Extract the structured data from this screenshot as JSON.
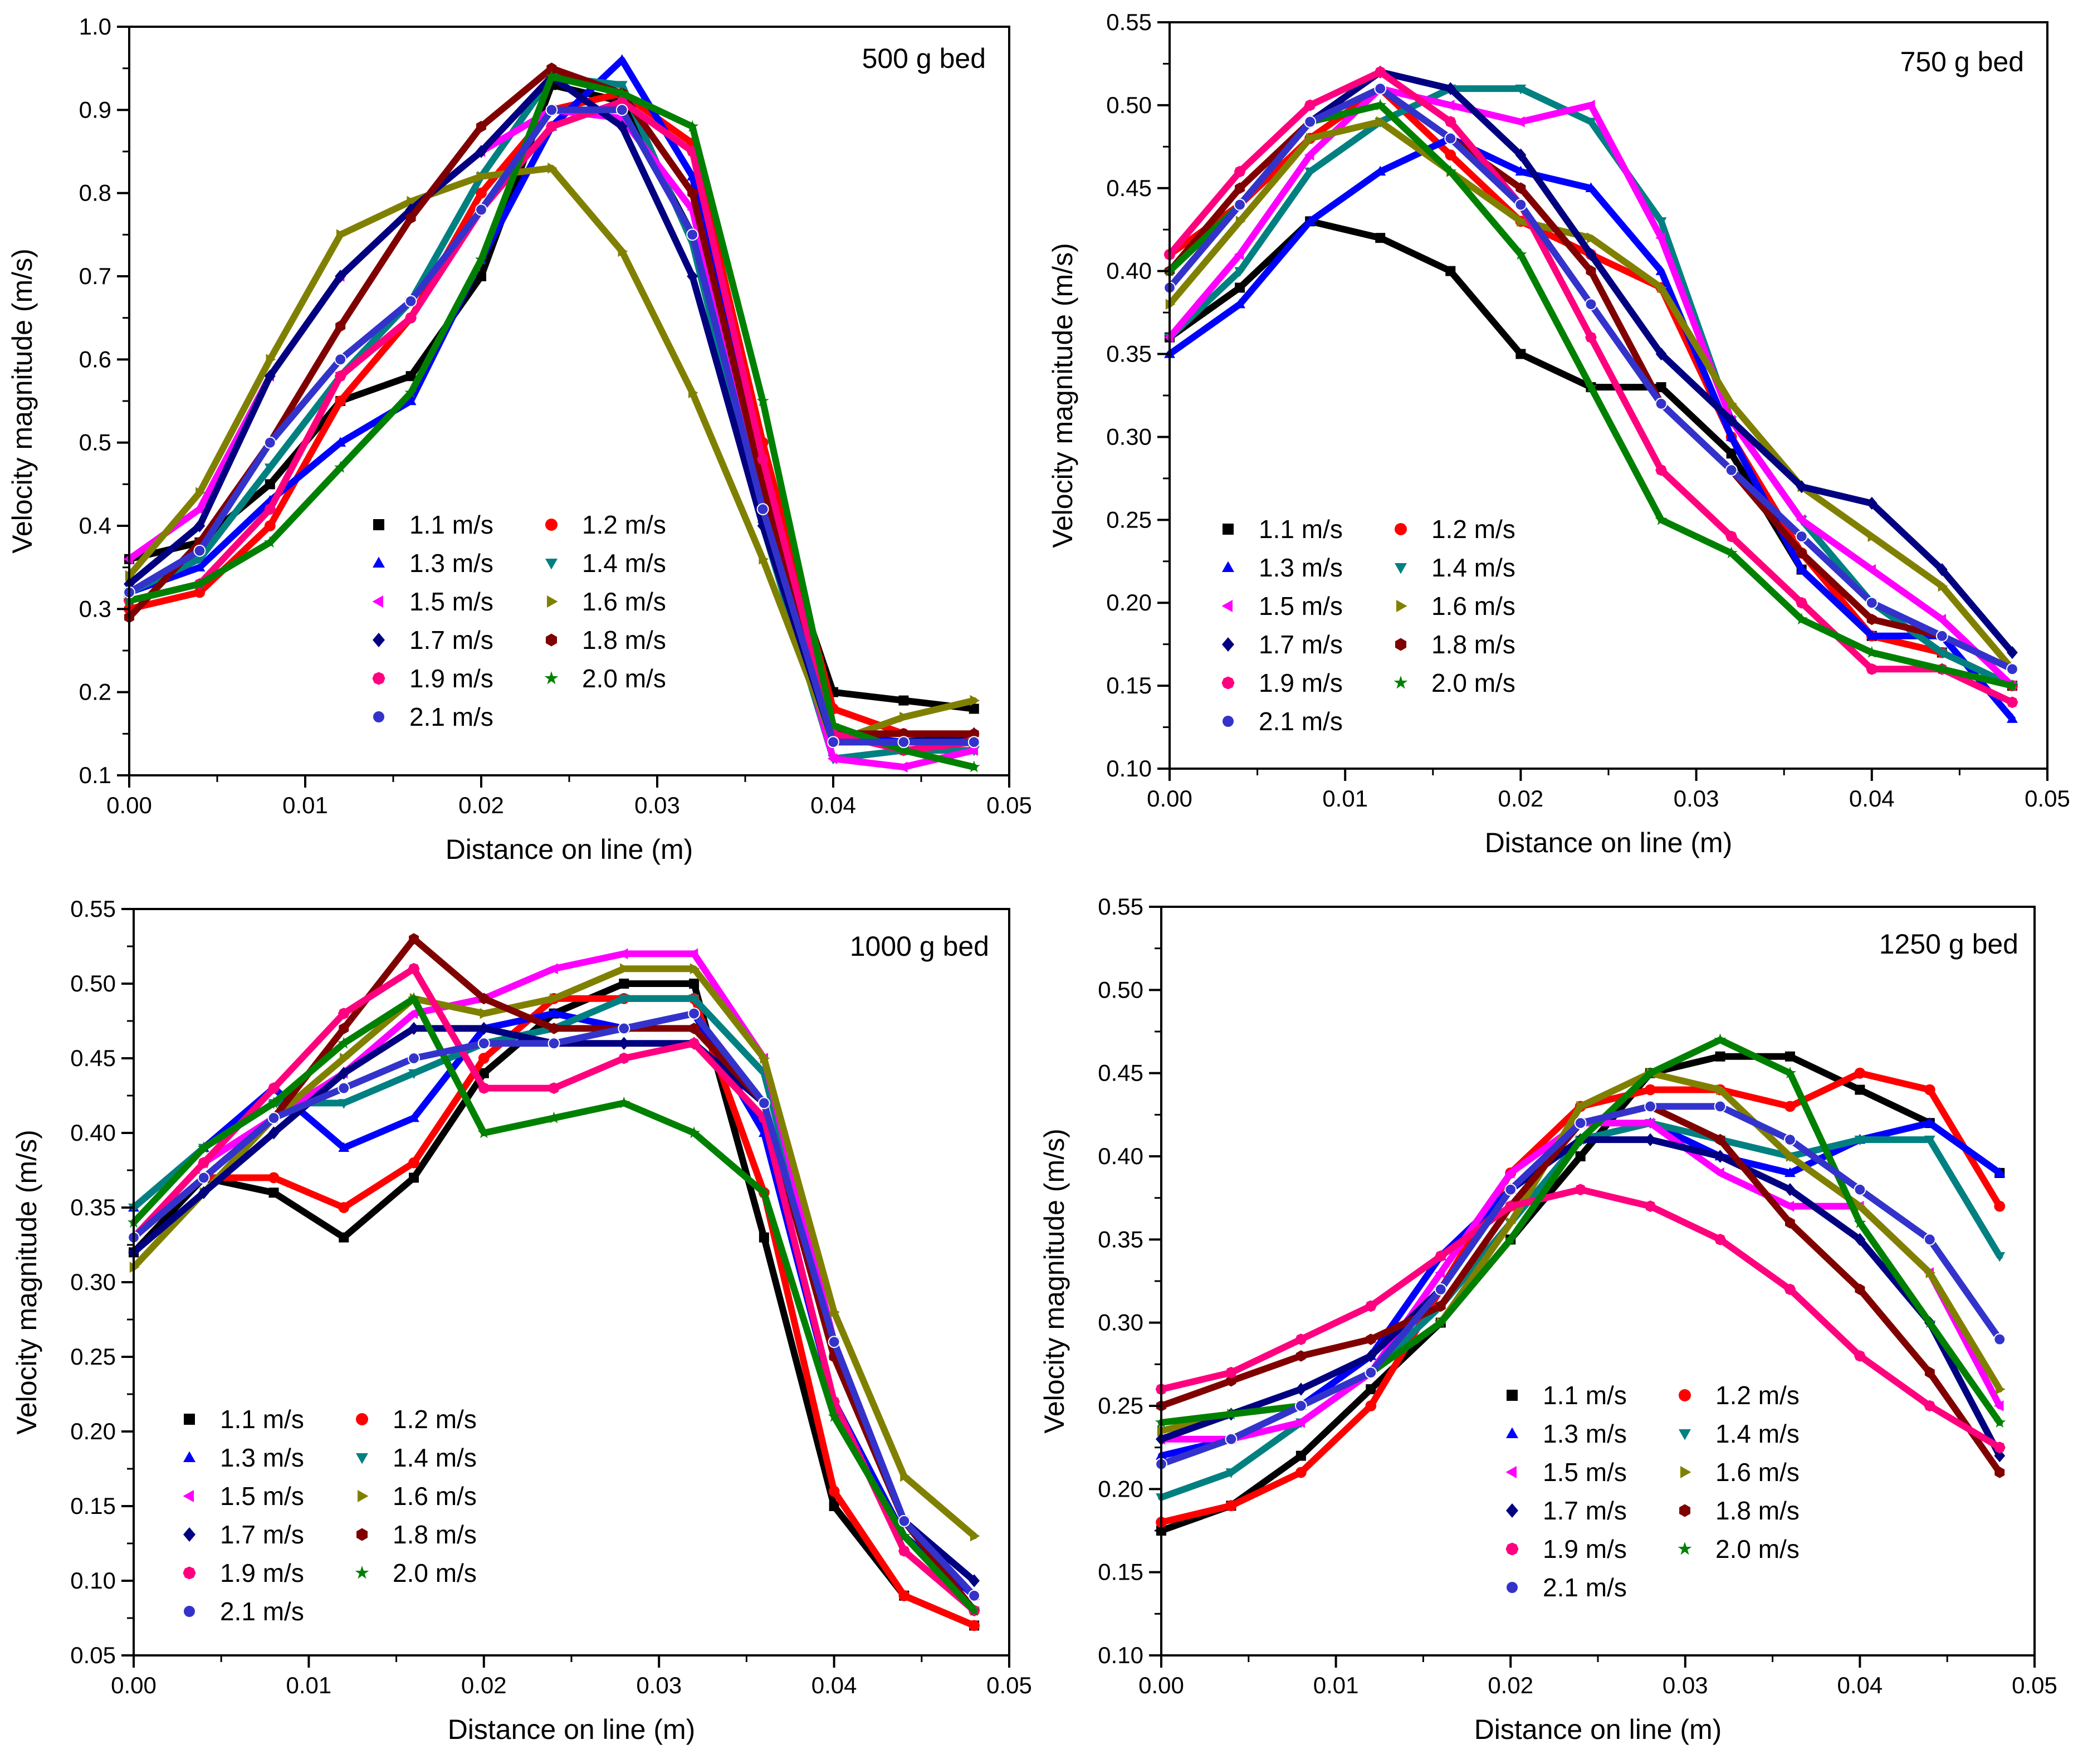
{
  "figure": {
    "x_axis_title": "Distance on line (m)",
    "y_axis_title": "Velocity magnitude (m/s)"
  },
  "legend_names": [
    "1.1 m/s",
    "1.2 m/s",
    "1.3 m/s",
    "1.4 m/s",
    "1.5 m/s",
    "1.6 m/s",
    "1.7 m/s",
    "1.8 m/s",
    "1.9 m/s",
    "2.0 m/s",
    "2.1 m/s"
  ],
  "series_colors": [
    "#000000",
    "#ff0000",
    "#0000ff",
    "#008080",
    "#ff00ff",
    "#808000",
    "#000080",
    "#800000",
    "#ff007f",
    "#008000",
    "#3333cc"
  ],
  "series_markers": [
    "square",
    "circle",
    "triangle-up",
    "triangle-down",
    "triangle-left",
    "triangle-right",
    "diamond",
    "hexagon",
    "octagon",
    "star",
    "sphere"
  ],
  "chart_data": [
    {
      "type": "line",
      "title": "500 g bed",
      "xlabel": "Distance on line (m)",
      "ylabel": "Velocity magnitude (m/s)",
      "xlim": [
        0,
        0.05
      ],
      "ylim": [
        0.1,
        1.0
      ],
      "xticks": [
        "0.00",
        "0.01",
        "0.02",
        "0.03",
        "0.04",
        "0.05"
      ],
      "yticks": [
        "0.1",
        "0.2",
        "0.3",
        "0.4",
        "0.5",
        "0.6",
        "0.7",
        "0.8",
        "0.9",
        "1.0"
      ],
      "x": [
        0,
        0.004,
        0.008,
        0.012,
        0.016,
        0.02,
        0.024,
        0.028,
        0.032,
        0.036,
        0.04,
        0.044,
        0.048
      ],
      "series": [
        {
          "name": "1.1 m/s",
          "values": [
            0.36,
            0.38,
            0.45,
            0.55,
            0.58,
            0.7,
            0.93,
            0.91,
            0.75,
            0.45,
            0.2,
            0.19,
            0.18
          ]
        },
        {
          "name": "1.2 m/s",
          "values": [
            0.3,
            0.32,
            0.4,
            0.55,
            0.65,
            0.8,
            0.9,
            0.92,
            0.86,
            0.5,
            0.18,
            0.15,
            0.14
          ]
        },
        {
          "name": "1.3 m/s",
          "values": [
            0.32,
            0.35,
            0.43,
            0.5,
            0.55,
            0.72,
            0.88,
            0.96,
            0.82,
            0.45,
            0.15,
            0.14,
            0.14
          ]
        },
        {
          "name": "1.4 m/s",
          "values": [
            0.32,
            0.36,
            0.47,
            0.58,
            0.67,
            0.82,
            0.94,
            0.93,
            0.74,
            0.4,
            0.12,
            0.13,
            0.13
          ]
        },
        {
          "name": "1.5 m/s",
          "values": [
            0.36,
            0.42,
            0.58,
            0.7,
            0.78,
            0.85,
            0.9,
            0.89,
            0.78,
            0.42,
            0.12,
            0.11,
            0.13
          ]
        },
        {
          "name": "1.6 m/s",
          "values": [
            0.34,
            0.44,
            0.6,
            0.75,
            0.79,
            0.82,
            0.83,
            0.73,
            0.56,
            0.36,
            0.14,
            0.17,
            0.19
          ]
        },
        {
          "name": "1.7 m/s",
          "values": [
            0.33,
            0.4,
            0.58,
            0.7,
            0.78,
            0.85,
            0.94,
            0.88,
            0.7,
            0.4,
            0.14,
            0.14,
            0.15
          ]
        },
        {
          "name": "1.8 m/s",
          "values": [
            0.29,
            0.38,
            0.5,
            0.64,
            0.77,
            0.88,
            0.95,
            0.92,
            0.8,
            0.45,
            0.15,
            0.15,
            0.15
          ]
        },
        {
          "name": "1.9 m/s",
          "values": [
            0.31,
            0.33,
            0.42,
            0.58,
            0.65,
            0.78,
            0.88,
            0.91,
            0.85,
            0.48,
            0.15,
            0.13,
            0.14
          ]
        },
        {
          "name": "2.0 m/s",
          "values": [
            0.31,
            0.33,
            0.38,
            0.47,
            0.56,
            0.72,
            0.94,
            0.92,
            0.88,
            0.55,
            0.16,
            0.13,
            0.11
          ]
        },
        {
          "name": "2.1 m/s",
          "values": [
            0.32,
            0.37,
            0.5,
            0.6,
            0.67,
            0.78,
            0.9,
            0.9,
            0.75,
            0.42,
            0.14,
            0.14,
            0.14
          ]
        }
      ]
    },
    {
      "type": "line",
      "title": "750 g bed",
      "xlabel": "Distance on line (m)",
      "ylabel": "Velocity magnitude (m/s)",
      "xlim": [
        0,
        0.05
      ],
      "ylim": [
        0.1,
        0.55
      ],
      "xticks": [
        "0.00",
        "0.01",
        "0.02",
        "0.03",
        "0.04",
        "0.05"
      ],
      "yticks": [
        "0.10",
        "0.15",
        "0.20",
        "0.25",
        "0.30",
        "0.35",
        "0.40",
        "0.45",
        "0.50",
        "0.55"
      ],
      "x": [
        0,
        0.004,
        0.008,
        0.012,
        0.016,
        0.02,
        0.024,
        0.028,
        0.032,
        0.036,
        0.04,
        0.044,
        0.048
      ],
      "series": [
        {
          "name": "1.1 m/s",
          "values": [
            0.36,
            0.39,
            0.43,
            0.42,
            0.4,
            0.35,
            0.33,
            0.33,
            0.29,
            0.22,
            0.18,
            0.17,
            0.15
          ]
        },
        {
          "name": "1.2 m/s",
          "values": [
            0.41,
            0.44,
            0.48,
            0.51,
            0.47,
            0.43,
            0.41,
            0.39,
            0.3,
            0.23,
            0.18,
            0.17,
            0.15
          ]
        },
        {
          "name": "1.3 m/s",
          "values": [
            0.35,
            0.38,
            0.43,
            0.46,
            0.48,
            0.46,
            0.45,
            0.4,
            0.3,
            0.22,
            0.18,
            0.18,
            0.13
          ]
        },
        {
          "name": "1.4 m/s",
          "values": [
            0.36,
            0.4,
            0.46,
            0.49,
            0.51,
            0.51,
            0.49,
            0.43,
            0.31,
            0.25,
            0.2,
            0.17,
            0.15
          ]
        },
        {
          "name": "1.5 m/s",
          "values": [
            0.36,
            0.41,
            0.47,
            0.51,
            0.5,
            0.49,
            0.5,
            0.42,
            0.31,
            0.25,
            0.22,
            0.19,
            0.15
          ]
        },
        {
          "name": "1.6 m/s",
          "values": [
            0.38,
            0.43,
            0.48,
            0.49,
            0.46,
            0.43,
            0.42,
            0.39,
            0.32,
            0.27,
            0.24,
            0.21,
            0.16
          ]
        },
        {
          "name": "1.7 m/s",
          "values": [
            0.39,
            0.44,
            0.49,
            0.52,
            0.51,
            0.47,
            0.41,
            0.35,
            0.31,
            0.27,
            0.26,
            0.22,
            0.17
          ]
        },
        {
          "name": "1.8 m/s",
          "values": [
            0.4,
            0.45,
            0.49,
            0.51,
            0.48,
            0.45,
            0.4,
            0.32,
            0.28,
            0.23,
            0.19,
            0.18,
            0.16
          ]
        },
        {
          "name": "1.9 m/s",
          "values": [
            0.41,
            0.46,
            0.5,
            0.52,
            0.49,
            0.44,
            0.36,
            0.28,
            0.24,
            0.2,
            0.16,
            0.16,
            0.14
          ]
        },
        {
          "name": "2.0 m/s",
          "values": [
            0.4,
            0.44,
            0.49,
            0.5,
            0.46,
            0.41,
            0.33,
            0.25,
            0.23,
            0.19,
            0.17,
            0.16,
            0.15
          ]
        },
        {
          "name": "2.1 m/s",
          "values": [
            0.39,
            0.44,
            0.49,
            0.51,
            0.48,
            0.44,
            0.38,
            0.32,
            0.28,
            0.24,
            0.2,
            0.18,
            0.16
          ]
        }
      ]
    },
    {
      "type": "line",
      "title": "1000 g bed",
      "xlabel": "Distance on line (m)",
      "ylabel": "Velocity magnitude (m/s)",
      "xlim": [
        0,
        0.05
      ],
      "ylim": [
        0.05,
        0.55
      ],
      "xticks": [
        "0.00",
        "0.01",
        "0.02",
        "0.03",
        "0.04",
        "0.05"
      ],
      "yticks": [
        "0.05",
        "0.10",
        "0.15",
        "0.20",
        "0.25",
        "0.30",
        "0.35",
        "0.40",
        "0.45",
        "0.50",
        "0.55"
      ],
      "x": [
        0,
        0.004,
        0.008,
        0.012,
        0.016,
        0.02,
        0.024,
        0.028,
        0.032,
        0.036,
        0.04,
        0.044,
        0.048
      ],
      "series": [
        {
          "name": "1.1 m/s",
          "values": [
            0.32,
            0.37,
            0.36,
            0.33,
            0.37,
            0.44,
            0.48,
            0.5,
            0.5,
            0.33,
            0.15,
            0.09,
            0.07
          ]
        },
        {
          "name": "1.2 m/s",
          "values": [
            0.33,
            0.37,
            0.37,
            0.35,
            0.38,
            0.45,
            0.49,
            0.49,
            0.49,
            0.36,
            0.16,
            0.09,
            0.07
          ]
        },
        {
          "name": "1.3 m/s",
          "values": [
            0.35,
            0.39,
            0.43,
            0.39,
            0.41,
            0.47,
            0.48,
            0.47,
            0.48,
            0.4,
            0.22,
            0.13,
            0.09
          ]
        },
        {
          "name": "1.4 m/s",
          "values": [
            0.35,
            0.39,
            0.42,
            0.42,
            0.44,
            0.46,
            0.47,
            0.49,
            0.49,
            0.44,
            0.26,
            0.14,
            0.08
          ]
        },
        {
          "name": "1.5 m/s",
          "values": [
            0.33,
            0.38,
            0.41,
            0.44,
            0.48,
            0.49,
            0.51,
            0.52,
            0.52,
            0.45,
            0.26,
            0.14,
            0.09
          ]
        },
        {
          "name": "1.6 m/s",
          "values": [
            0.31,
            0.36,
            0.41,
            0.45,
            0.49,
            0.48,
            0.49,
            0.51,
            0.51,
            0.45,
            0.28,
            0.17,
            0.13
          ]
        },
        {
          "name": "1.7 m/s",
          "values": [
            0.32,
            0.36,
            0.4,
            0.44,
            0.47,
            0.47,
            0.46,
            0.46,
            0.46,
            0.42,
            0.25,
            0.14,
            0.1
          ]
        },
        {
          "name": "1.8 m/s",
          "values": [
            0.33,
            0.37,
            0.41,
            0.47,
            0.53,
            0.49,
            0.47,
            0.47,
            0.47,
            0.42,
            0.25,
            0.14,
            0.08
          ]
        },
        {
          "name": "1.9 m/s",
          "values": [
            0.33,
            0.38,
            0.43,
            0.48,
            0.51,
            0.43,
            0.43,
            0.45,
            0.46,
            0.41,
            0.22,
            0.12,
            0.08
          ]
        },
        {
          "name": "2.0 m/s",
          "values": [
            0.34,
            0.39,
            0.42,
            0.46,
            0.49,
            0.4,
            0.41,
            0.42,
            0.4,
            0.36,
            0.21,
            0.13,
            0.08
          ]
        },
        {
          "name": "2.1 m/s",
          "values": [
            0.33,
            0.37,
            0.41,
            0.43,
            0.45,
            0.46,
            0.46,
            0.47,
            0.48,
            0.42,
            0.26,
            0.14,
            0.09
          ]
        }
      ]
    },
    {
      "type": "line",
      "title": "1250 g bed",
      "xlabel": "Distance on line (m)",
      "ylabel": "Velocity magnitude (m/s)",
      "xlim": [
        0,
        0.05
      ],
      "ylim": [
        0.1,
        0.55
      ],
      "xticks": [
        "0.00",
        "0.01",
        "0.02",
        "0.03",
        "0.04",
        "0.05"
      ],
      "yticks": [
        "0.10",
        "0.15",
        "0.20",
        "0.25",
        "0.30",
        "0.35",
        "0.40",
        "0.45",
        "0.50",
        "0.55"
      ],
      "x": [
        0,
        0.004,
        0.008,
        0.012,
        0.016,
        0.02,
        0.024,
        0.028,
        0.032,
        0.036,
        0.04,
        0.044,
        0.048
      ],
      "series": [
        {
          "name": "1.1 m/s",
          "values": [
            0.175,
            0.19,
            0.22,
            0.26,
            0.3,
            0.35,
            0.4,
            0.45,
            0.46,
            0.46,
            0.44,
            0.42,
            0.39
          ]
        },
        {
          "name": "1.2 m/s",
          "values": [
            0.18,
            0.19,
            0.21,
            0.25,
            0.32,
            0.39,
            0.43,
            0.44,
            0.44,
            0.43,
            0.45,
            0.44,
            0.37
          ]
        },
        {
          "name": "1.3 m/s",
          "values": [
            0.22,
            0.23,
            0.25,
            0.28,
            0.34,
            0.38,
            0.41,
            0.42,
            0.4,
            0.39,
            0.41,
            0.42,
            0.39
          ]
        },
        {
          "name": "1.4 m/s",
          "values": [
            0.195,
            0.21,
            0.24,
            0.27,
            0.31,
            0.36,
            0.41,
            0.42,
            0.41,
            0.4,
            0.41,
            0.41,
            0.34
          ]
        },
        {
          "name": "1.5 m/s",
          "values": [
            0.23,
            0.23,
            0.24,
            0.27,
            0.33,
            0.39,
            0.42,
            0.42,
            0.39,
            0.37,
            0.37,
            0.33,
            0.25
          ]
        },
        {
          "name": "1.6 m/s",
          "values": [
            0.235,
            0.245,
            0.25,
            0.27,
            0.3,
            0.36,
            0.43,
            0.45,
            0.44,
            0.4,
            0.37,
            0.33,
            0.26
          ]
        },
        {
          "name": "1.7 m/s",
          "values": [
            0.23,
            0.245,
            0.26,
            0.28,
            0.32,
            0.38,
            0.41,
            0.41,
            0.4,
            0.38,
            0.35,
            0.3,
            0.22
          ]
        },
        {
          "name": "1.8 m/s",
          "values": [
            0.25,
            0.265,
            0.28,
            0.29,
            0.31,
            0.37,
            0.42,
            0.43,
            0.41,
            0.36,
            0.32,
            0.27,
            0.21
          ]
        },
        {
          "name": "1.9 m/s",
          "values": [
            0.26,
            0.27,
            0.29,
            0.31,
            0.34,
            0.37,
            0.38,
            0.37,
            0.35,
            0.32,
            0.28,
            0.25,
            0.225
          ]
        },
        {
          "name": "2.0 m/s",
          "values": [
            0.24,
            0.245,
            0.25,
            0.27,
            0.3,
            0.35,
            0.41,
            0.45,
            0.47,
            0.45,
            0.36,
            0.3,
            0.24
          ]
        },
        {
          "name": "2.1 m/s",
          "values": [
            0.215,
            0.23,
            0.25,
            0.27,
            0.32,
            0.38,
            0.42,
            0.43,
            0.43,
            0.41,
            0.38,
            0.35,
            0.29
          ]
        }
      ]
    }
  ]
}
